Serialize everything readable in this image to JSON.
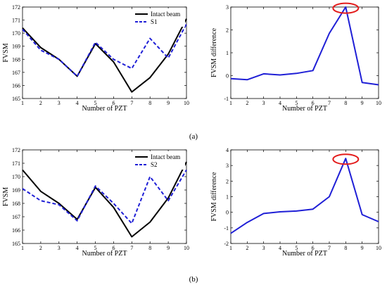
{
  "panel_labels": [
    "(a)",
    "(b)"
  ],
  "chart_data": [
    {
      "id": "a-left",
      "type": "line",
      "xlabel": "Number of PZT",
      "ylabel": "FVSM",
      "xlim": [
        1,
        10
      ],
      "ylim": [
        165,
        172
      ],
      "xticks": [
        1,
        2,
        3,
        4,
        5,
        6,
        7,
        8,
        9,
        10
      ],
      "yticks": [
        165,
        166,
        167,
        168,
        169,
        170,
        171,
        172
      ],
      "grid": false,
      "legend": "top-right",
      "x": [
        1,
        2,
        3,
        4,
        5,
        6,
        7,
        8,
        9,
        10
      ],
      "series": [
        {
          "name": "Intact beam",
          "color": "#000000",
          "dash": "solid",
          "values": [
            170.4,
            168.9,
            168.0,
            166.7,
            169.2,
            167.8,
            165.5,
            166.6,
            168.4,
            171.1
          ]
        },
        {
          "name": "S1",
          "color": "#1f1fd6",
          "dash": "dashed",
          "values": [
            170.3,
            168.7,
            168.0,
            166.7,
            169.3,
            168.0,
            167.3,
            169.6,
            168.1,
            170.7
          ]
        }
      ]
    },
    {
      "id": "a-right",
      "type": "line",
      "xlabel": "Number of PZT",
      "ylabel": "FVSM difference",
      "xlim": [
        1,
        10
      ],
      "ylim": [
        -1,
        3
      ],
      "xticks": [
        1,
        2,
        3,
        4,
        5,
        6,
        7,
        8,
        9,
        10
      ],
      "yticks": [
        -1,
        0,
        1,
        2,
        3
      ],
      "grid": false,
      "x": [
        1,
        2,
        3,
        4,
        5,
        6,
        7,
        8,
        9,
        10
      ],
      "series": [
        {
          "color": "#1f1fd6",
          "dash": "solid",
          "values": [
            -0.13,
            -0.18,
            0.08,
            0.03,
            0.1,
            0.22,
            1.85,
            3.0,
            -0.3,
            -0.4
          ]
        }
      ],
      "highlight": {
        "x": 8,
        "y": 2.95,
        "color": "#e31b1b"
      }
    },
    {
      "id": "b-left",
      "type": "line",
      "xlabel": "Number of PZT",
      "ylabel": "FVSM",
      "xlim": [
        1,
        10
      ],
      "ylim": [
        165,
        172
      ],
      "xticks": [
        1,
        2,
        3,
        4,
        5,
        6,
        7,
        8,
        9,
        10
      ],
      "yticks": [
        165,
        166,
        167,
        168,
        169,
        170,
        171,
        172
      ],
      "grid": false,
      "legend": "top-right",
      "x": [
        1,
        2,
        3,
        4,
        5,
        6,
        7,
        8,
        9,
        10
      ],
      "series": [
        {
          "name": "Intact beam",
          "color": "#000000",
          "dash": "solid",
          "values": [
            170.5,
            168.9,
            168.0,
            166.8,
            169.2,
            167.7,
            165.5,
            166.6,
            168.4,
            171.1
          ]
        },
        {
          "name": "S2",
          "color": "#1f1fd6",
          "dash": "dashed",
          "values": [
            169.1,
            168.2,
            167.9,
            166.7,
            169.3,
            168.0,
            166.5,
            170.0,
            168.2,
            170.5
          ]
        }
      ]
    },
    {
      "id": "b-right",
      "type": "line",
      "xlabel": "Number of PZT",
      "ylabel": "FVSM difference",
      "xlim": [
        1,
        10
      ],
      "ylim": [
        -2,
        4
      ],
      "xticks": [
        1,
        2,
        3,
        4,
        5,
        6,
        7,
        8,
        9,
        10
      ],
      "yticks": [
        -2,
        -1,
        0,
        1,
        2,
        3,
        4
      ],
      "grid": false,
      "x": [
        1,
        2,
        3,
        4,
        5,
        6,
        7,
        8,
        9,
        10
      ],
      "series": [
        {
          "color": "#1f1fd6",
          "dash": "solid",
          "values": [
            -1.35,
            -0.65,
            -0.08,
            0.03,
            0.08,
            0.2,
            1.0,
            3.45,
            -0.15,
            -0.6
          ]
        }
      ],
      "highlight": {
        "x": 8,
        "y": 3.4,
        "color": "#e31b1b"
      }
    }
  ]
}
